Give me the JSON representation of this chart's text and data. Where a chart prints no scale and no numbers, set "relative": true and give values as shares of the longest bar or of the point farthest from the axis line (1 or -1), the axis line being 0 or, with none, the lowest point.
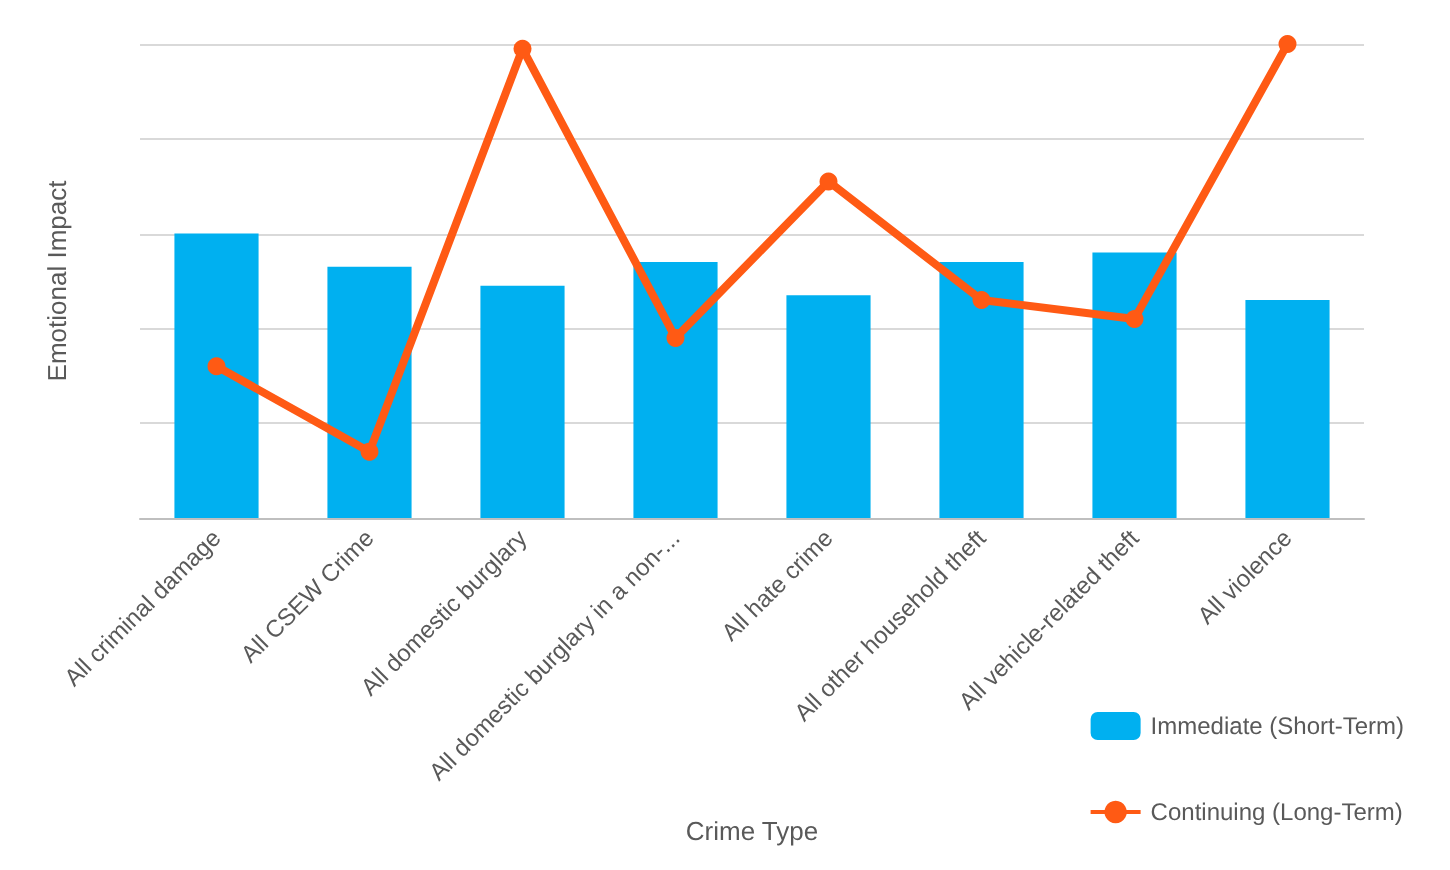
{
  "chart_data": {
    "type": "bar",
    "relative": true,
    "xlabel": "Crime Type",
    "ylabel": "Emotional Impact",
    "categories": [
      "All criminal damage",
      "All CSEW Crime",
      "All domestic burglary",
      "All domestic burglary in a non-...",
      "All hate crime",
      "All other household theft",
      "All vehicle-related theft",
      "All violence"
    ],
    "series": [
      {
        "name": "Immediate (Short-Term)",
        "color": "#00b0f0",
        "values": [
          0.6,
          0.53,
          0.49,
          0.54,
          0.47,
          0.54,
          0.56,
          0.46
        ]
      },
      {
        "name": "Continuing (Long-Term)",
        "type": "line",
        "color": "#ff5a14",
        "marker": "circle",
        "values": [
          0.32,
          0.14,
          0.99,
          0.38,
          0.71,
          0.46,
          0.42,
          1
        ]
      }
    ],
    "grid": "y",
    "legend": "bottom right"
  }
}
